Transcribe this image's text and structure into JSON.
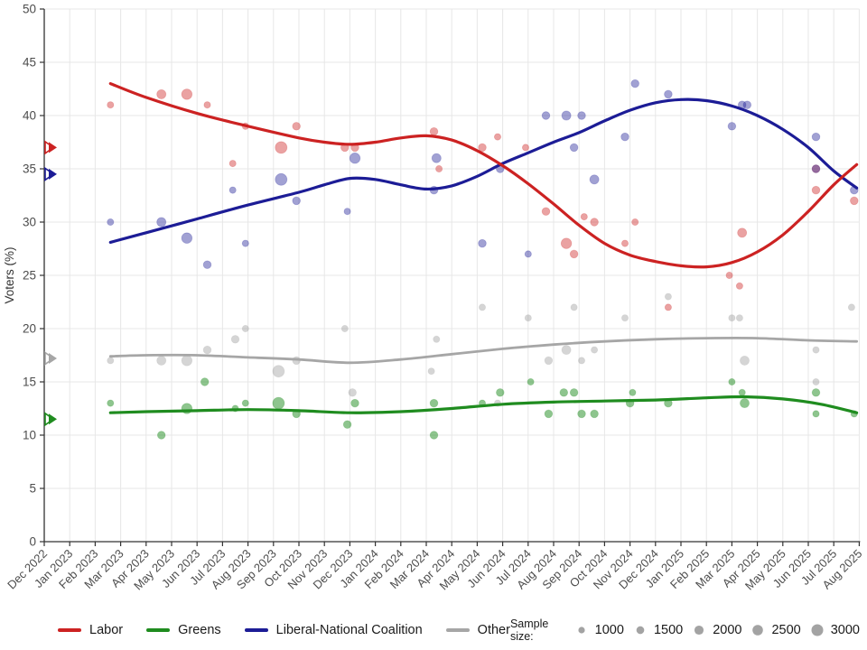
{
  "chart_data": {
    "type": "scatter",
    "title": "",
    "ylabel": "Voters (%)",
    "ylim": [
      0,
      50
    ],
    "ytick_step": 5,
    "grid": true,
    "legend_position": "bottom",
    "x_labels": [
      "Dec 2022",
      "Jan 2023",
      "Feb 2023",
      "Mar 2023",
      "Apr 2023",
      "May 2023",
      "Jun 2023",
      "Jul 2023",
      "Aug 2023",
      "Sep 2023",
      "Oct 2023",
      "Nov 2023",
      "Dec 2023",
      "Jan 2024",
      "Feb 2024",
      "Mar 2024",
      "Apr 2024",
      "May 2024",
      "Jun 2024",
      "Jul 2024",
      "Aug 2024",
      "Sep 2024",
      "Oct 2024",
      "Nov 2024",
      "Dec 2024",
      "Jan 2025",
      "Feb 2025",
      "Mar 2025",
      "Apr 2025",
      "May 2025",
      "Jun 2025",
      "Jul 2025",
      "Aug 2025"
    ],
    "sample_legend": {
      "label": "Sample size:",
      "sizes": [
        1000,
        1500,
        2000,
        2500,
        3000
      ]
    },
    "series": [
      {
        "name": "Labor",
        "line_color": "#cc2222",
        "point_fill": "rgba(204,34,34,0.42)",
        "axis_marker_value": 37,
        "points": [
          [
            2.6,
            41,
            1000
          ],
          [
            4.6,
            42,
            2000
          ],
          [
            5.6,
            42,
            2500
          ],
          [
            6.4,
            41,
            1000
          ],
          [
            7.4,
            35.5,
            1000
          ],
          [
            7.9,
            39,
            1000
          ],
          [
            9.3,
            37,
            3000
          ],
          [
            9.9,
            39,
            1500
          ],
          [
            11.8,
            37,
            1500
          ],
          [
            12.2,
            37,
            1500
          ],
          [
            15.3,
            38.5,
            1500
          ],
          [
            15.5,
            35,
            1000
          ],
          [
            17.2,
            37,
            1500
          ],
          [
            17.8,
            38,
            1000
          ],
          [
            18.9,
            37,
            1000
          ],
          [
            19.7,
            31,
            1500
          ],
          [
            20.5,
            28,
            2500
          ],
          [
            20.8,
            27,
            1500
          ],
          [
            21.2,
            30.5,
            1000
          ],
          [
            21.6,
            30,
            1500
          ],
          [
            22.8,
            28,
            1000
          ],
          [
            23.2,
            30,
            1000
          ],
          [
            24.5,
            22,
            1000
          ],
          [
            26.9,
            25,
            1000
          ],
          [
            27.3,
            24,
            1000
          ],
          [
            27.4,
            29,
            2000
          ],
          [
            30.3,
            35,
            1500
          ],
          [
            30.3,
            33,
            1500
          ],
          [
            31.8,
            32,
            1500
          ]
        ],
        "trend": [
          [
            2.6,
            43.0
          ],
          [
            4,
            41.7
          ],
          [
            6,
            40.2
          ],
          [
            8,
            39.0
          ],
          [
            10,
            37.9
          ],
          [
            11,
            37.5
          ],
          [
            12,
            37.3
          ],
          [
            13,
            37.5
          ],
          [
            14,
            37.9
          ],
          [
            15,
            38.1
          ],
          [
            16,
            37.7
          ],
          [
            17,
            36.7
          ],
          [
            18,
            35.3
          ],
          [
            19,
            33.6
          ],
          [
            20,
            31.7
          ],
          [
            21,
            29.7
          ],
          [
            22,
            28.0
          ],
          [
            23,
            26.9
          ],
          [
            24,
            26.3
          ],
          [
            25,
            25.9
          ],
          [
            26,
            25.8
          ],
          [
            27,
            26.2
          ],
          [
            28,
            27.2
          ],
          [
            29,
            28.8
          ],
          [
            30,
            31.0
          ],
          [
            31,
            33.5
          ],
          [
            31.9,
            35.4
          ]
        ]
      },
      {
        "name": "Greens",
        "line_color": "#1f8c1f",
        "point_fill": "rgba(30,140,30,0.5)",
        "axis_marker_value": 11.5,
        "points": [
          [
            2.6,
            13,
            1000
          ],
          [
            4.6,
            10,
            1500
          ],
          [
            5.6,
            12.5,
            2500
          ],
          [
            6.3,
            15,
            1500
          ],
          [
            7.5,
            12.5,
            1000
          ],
          [
            7.9,
            13,
            1000
          ],
          [
            9.2,
            13,
            3000
          ],
          [
            9.9,
            12,
            1500
          ],
          [
            11.9,
            11,
            1500
          ],
          [
            12.2,
            13,
            1500
          ],
          [
            15.3,
            13,
            1500
          ],
          [
            15.3,
            10,
            1500
          ],
          [
            17.2,
            13,
            1000
          ],
          [
            17.9,
            14,
            1500
          ],
          [
            19.1,
            15,
            1000
          ],
          [
            19.8,
            12,
            1500
          ],
          [
            20.4,
            14,
            1500
          ],
          [
            20.8,
            14,
            1500
          ],
          [
            21.1,
            12,
            1500
          ],
          [
            21.6,
            12,
            1500
          ],
          [
            23.0,
            13,
            1500
          ],
          [
            23.1,
            14,
            1000
          ],
          [
            24.5,
            13,
            1500
          ],
          [
            27.0,
            15,
            1000
          ],
          [
            27.4,
            14,
            1000
          ],
          [
            27.5,
            13,
            2000
          ],
          [
            30.3,
            14,
            1500
          ],
          [
            30.3,
            12,
            1000
          ],
          [
            31.8,
            12,
            1000
          ]
        ],
        "trend": [
          [
            2.6,
            12.1
          ],
          [
            4,
            12.2
          ],
          [
            6,
            12.3
          ],
          [
            8,
            12.4
          ],
          [
            10,
            12.3
          ],
          [
            12,
            12.1
          ],
          [
            14,
            12.2
          ],
          [
            16,
            12.5
          ],
          [
            18,
            12.9
          ],
          [
            20,
            13.1
          ],
          [
            22,
            13.2
          ],
          [
            24,
            13.3
          ],
          [
            26,
            13.5
          ],
          [
            27.5,
            13.6
          ],
          [
            29,
            13.4
          ],
          [
            30.5,
            12.9
          ],
          [
            31.9,
            12.1
          ]
        ]
      },
      {
        "name": "Liberal-National Coalition",
        "line_color": "#1c1c96",
        "point_fill": "rgba(30,30,150,0.42)",
        "axis_marker_value": 34.5,
        "points": [
          [
            2.6,
            30,
            1000
          ],
          [
            4.6,
            30,
            2000
          ],
          [
            5.6,
            28.5,
            2500
          ],
          [
            6.4,
            26,
            1500
          ],
          [
            7.4,
            33,
            1000
          ],
          [
            7.9,
            28,
            1000
          ],
          [
            9.3,
            34,
            3000
          ],
          [
            9.9,
            32,
            1500
          ],
          [
            11.9,
            31,
            1000
          ],
          [
            12.2,
            36,
            2500
          ],
          [
            15.3,
            33,
            1500
          ],
          [
            15.4,
            36,
            2000
          ],
          [
            17.2,
            28,
            1500
          ],
          [
            17.9,
            35,
            1500
          ],
          [
            19.0,
            27,
            1000
          ],
          [
            19.7,
            40,
            1500
          ],
          [
            20.5,
            40,
            2000
          ],
          [
            20.8,
            37,
            1500
          ],
          [
            21.1,
            40,
            1500
          ],
          [
            21.6,
            34,
            2000
          ],
          [
            22.8,
            38,
            1500
          ],
          [
            23.2,
            43,
            1500
          ],
          [
            24.5,
            42,
            1500
          ],
          [
            27.0,
            39,
            1500
          ],
          [
            27.4,
            41,
            1500
          ],
          [
            27.6,
            41,
            1500
          ],
          [
            30.3,
            38,
            1500
          ],
          [
            30.3,
            35,
            1500
          ],
          [
            31.8,
            33,
            1500
          ]
        ],
        "trend": [
          [
            2.6,
            28.1
          ],
          [
            4,
            29.0
          ],
          [
            6,
            30.3
          ],
          [
            8,
            31.6
          ],
          [
            10,
            32.8
          ],
          [
            11,
            33.5
          ],
          [
            12,
            34.1
          ],
          [
            13,
            34.0
          ],
          [
            14,
            33.5
          ],
          [
            15,
            33.1
          ],
          [
            16,
            33.4
          ],
          [
            17,
            34.3
          ],
          [
            18,
            35.5
          ],
          [
            19,
            36.5
          ],
          [
            20,
            37.5
          ],
          [
            21,
            38.4
          ],
          [
            22,
            39.5
          ],
          [
            23,
            40.5
          ],
          [
            24,
            41.2
          ],
          [
            25,
            41.5
          ],
          [
            26,
            41.4
          ],
          [
            27,
            40.9
          ],
          [
            28,
            40.0
          ],
          [
            29,
            38.7
          ],
          [
            30,
            37.0
          ],
          [
            31,
            34.8
          ],
          [
            31.9,
            33.2
          ]
        ]
      },
      {
        "name": "Other",
        "line_color": "#a6a6a6",
        "point_fill": "rgba(150,150,150,0.4)",
        "axis_marker_value": 17.2,
        "points": [
          [
            2.6,
            17,
            1000
          ],
          [
            4.6,
            17,
            2000
          ],
          [
            5.6,
            17,
            2500
          ],
          [
            6.4,
            18,
            1500
          ],
          [
            7.5,
            19,
            1500
          ],
          [
            7.9,
            20,
            1000
          ],
          [
            9.2,
            16,
            3000
          ],
          [
            9.9,
            17,
            1500
          ],
          [
            11.8,
            20,
            1000
          ],
          [
            12.1,
            14,
            1500
          ],
          [
            15.2,
            16,
            1000
          ],
          [
            15.4,
            19,
            1000
          ],
          [
            17.2,
            22,
            1000
          ],
          [
            17.8,
            13,
            1000
          ],
          [
            19.0,
            21,
            1000
          ],
          [
            19.8,
            17,
            1500
          ],
          [
            20.5,
            18,
            2000
          ],
          [
            20.8,
            22,
            1000
          ],
          [
            21.1,
            17,
            1000
          ],
          [
            21.6,
            18,
            1000
          ],
          [
            22.8,
            21,
            1000
          ],
          [
            24.5,
            23,
            1000
          ],
          [
            27.0,
            21,
            1000
          ],
          [
            27.3,
            21,
            1000
          ],
          [
            27.5,
            17,
            2000
          ],
          [
            30.3,
            18,
            1000
          ],
          [
            30.3,
            15,
            1000
          ],
          [
            31.7,
            22,
            1000
          ]
        ],
        "trend": [
          [
            2.6,
            17.4
          ],
          [
            4,
            17.5
          ],
          [
            6,
            17.5
          ],
          [
            8,
            17.3
          ],
          [
            10,
            17.1
          ],
          [
            12,
            16.8
          ],
          [
            14,
            17.1
          ],
          [
            16,
            17.6
          ],
          [
            18,
            18.1
          ],
          [
            20,
            18.5
          ],
          [
            22,
            18.8
          ],
          [
            24,
            19.0
          ],
          [
            26,
            19.1
          ],
          [
            28,
            19.1
          ],
          [
            30,
            18.9
          ],
          [
            31.9,
            18.8
          ]
        ]
      }
    ]
  }
}
